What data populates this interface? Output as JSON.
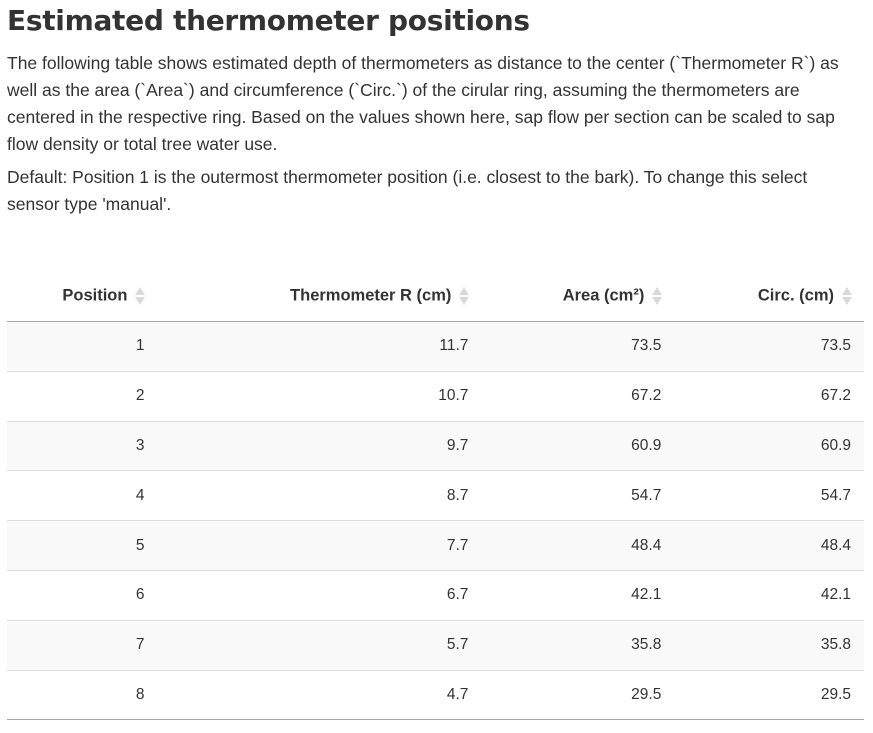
{
  "title": "Estimated thermometer positions",
  "description": {
    "p1_a": "The following table shows estimated depth of thermometers as distance to the center (",
    "p1_code1": "`Thermometer R`",
    "p1_b": ") as well as the area (",
    "p1_code2": "`Area`",
    "p1_c": ") and circumference (",
    "p1_code3": "`Circ.`",
    "p1_d": ") of the cirular ring, assuming the thermometers are centered in the respective ring. Based on the values shown here, sap flow per section can be scaled to sap flow density or total tree water use.",
    "p2": "Default: Position 1 is the outermost thermometer position (i.e. closest to the bark). To change this select sensor type 'manual'."
  },
  "table": {
    "headers": [
      "Position",
      "Thermometer R (cm)",
      "Area (cm²)",
      "Circ. (cm)"
    ],
    "rows": [
      [
        "1",
        "11.7",
        "73.5",
        "73.5"
      ],
      [
        "2",
        "10.7",
        "67.2",
        "67.2"
      ],
      [
        "3",
        "9.7",
        "60.9",
        "60.9"
      ],
      [
        "4",
        "8.7",
        "54.7",
        "54.7"
      ],
      [
        "5",
        "7.7",
        "48.4",
        "48.4"
      ],
      [
        "6",
        "6.7",
        "42.1",
        "42.1"
      ],
      [
        "7",
        "5.7",
        "35.8",
        "35.8"
      ],
      [
        "8",
        "4.7",
        "29.5",
        "29.5"
      ]
    ]
  },
  "colors": {
    "text": "#333333",
    "stripe": "#f9f9f9",
    "sort_icon": "#d9d9d9"
  },
  "icons": {
    "sort": "sort-both-icon"
  }
}
